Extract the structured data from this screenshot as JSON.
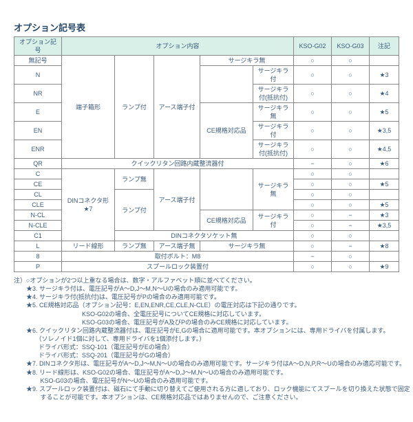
{
  "title": "オプション記号表",
  "headers": {
    "col_code": "オプション記号",
    "col_content": "オプション内容",
    "col_g02": "KSO-G02",
    "col_g03": "KSO-G03",
    "col_note": "注記"
  },
  "cells": {
    "r0c0": "無記号",
    "r0c4": "サージキラ無",
    "r0c5": "○",
    "r0c6": "○",
    "r0c7": "",
    "r1c0": "N",
    "r1c1": "端子箱形",
    "r1c2": "ランプ付",
    "r1c3": "アース端子付",
    "r1c4_a": "CE規格対応品",
    "r1c4": "サージキラ付",
    "r1c5": "○",
    "r1c6": "○",
    "r1c7": "★3",
    "r2c0": "NR",
    "r2c4": "サージキラ付(抵抗付)",
    "r2c5": "○",
    "r2c6": "○",
    "r2c7": "★4",
    "r3c0": "E",
    "r3c4": "サージキラ無",
    "r3c5": "○",
    "r3c6": "○",
    "r3c7": "★5",
    "r4c0": "EN",
    "r4c4": "サージキラ付",
    "r4c5": "○",
    "r4c6": "○",
    "r4c7": "★3,5",
    "r5c0": "ENR",
    "r5c4": "サージキラ付(抵抗付)",
    "r5c5": "○",
    "r5c6": "○",
    "r5c7": "★4,5",
    "r6c0": "QR",
    "r6c1": "クイックリタン回路内蔵整流器付",
    "r6c5": "−",
    "r6c6": "○",
    "r6c7": "★6",
    "r7c0": "C",
    "r7c1": "DINコネクタ形\n★7",
    "r7c2a": "ランプ無",
    "r7c3a": "アース端子付",
    "r7c4a": "CE規格対応品",
    "r7c4": "サージキラ無",
    "r7c5": "○",
    "r7c6": "○",
    "r7c7": "",
    "r8c0": "CE",
    "r8c5": "○",
    "r8c6": "○",
    "r8c7": "★5",
    "r9c0": "CL",
    "r9c2b": "ランプ付",
    "r9c4b": "CE規格対応品",
    "r9c5": "○",
    "r9c6": "○",
    "r9c7": "",
    "r10c0": "CLE",
    "r10c5": "○",
    "r10c6": "○",
    "r10c7": "★5",
    "r11c0": "N-CL",
    "r11c4": "サージキラ付",
    "r11c5": "○",
    "r11c6": "−",
    "r11c7": "★3",
    "r12c0": "N-CLE",
    "r12c5": "○",
    "r12c6": "−",
    "r12c7": "★3,5",
    "r13c0": "C1",
    "r13c1": "DINコネクタソケット無",
    "r13c5": "○",
    "r13c6": "○",
    "r13c7": "",
    "r14c0": "L",
    "r14c1": "リード線形",
    "r14c2": "ランプ無",
    "r14c3": "アース端子無",
    "r14c4": "サージキラ無",
    "r14c5": "○",
    "r14c6": "−",
    "r14c7": "★8",
    "r15c0": "8",
    "r15c1": "取付ボルト：M8",
    "r15c5": "−",
    "r15c6": "○",
    "r15c7": "",
    "r16c0": "P",
    "r16c1": "スプールロック装置付",
    "r16c5": "○",
    "r16c6": "○",
    "r16c7": "★9"
  },
  "notes": [
    "注）○オプションが2つ以上重なる場合は、数字・アルファベット順に並べてください。",
    "　　★3. サージキラ付は、電圧記号がA～D,J～M,N～Uの場合のみ適用可能です。",
    "　　★4. サージキラ付(抵抗付)は、電圧記号がPの場合のみ適用可能です。",
    "　　★5. CE規格対応品（オプション記号：E,EN,ENR,CE,CLE,N-CLE）の電圧対応は下記の通りです。",
    "　　　　　　　　　　　KSO-G02の場合、全電圧記号についてCE規格に対応しています。",
    "　　　　　　　　　　　KSO-G03の場合、電圧記号がA及びPの場合のみCE規格に対応しています。",
    "　　★6. クイックリタン回路内蔵整流器付は、電圧記号がE,Gの場合に適用可能です。本オプションには、専用ドライバを付属します。",
    "　　　　（ソレノイド1個に対して、専用ドライバを1個添付します。）",
    "　　　　ドライバ形式：SSQ-101（電圧記号がEの場合）",
    "　　　　ドライバ形式：SSQ-201（電圧記号がGの場合）",
    "　　★7. DINコネクタ形は、電圧記号がA～D,J～M,N～Uの場合のみ適用可能です。サージキラ付はA～D,N,P,R～Uの場合のみ適応可能です。",
    "　　★8. リード線形は、KSO-G02の場合、電圧記号がA～D,J～M,N～Uの場合のみ適用可能です。",
    "　　　　 KSO-G03の場合、電圧記号がN～Uの場合のみ適用可能です。",
    "　　★9. スプールロック装置付は、磁石にて手動に切り替えてご使用される方に適しており、ロック機能にてスプールを切り換えた状態で固定",
    "　　　　 することが可能です。本オプションは、CE規格対応品ではありませんので、ご注意ください。"
  ]
}
